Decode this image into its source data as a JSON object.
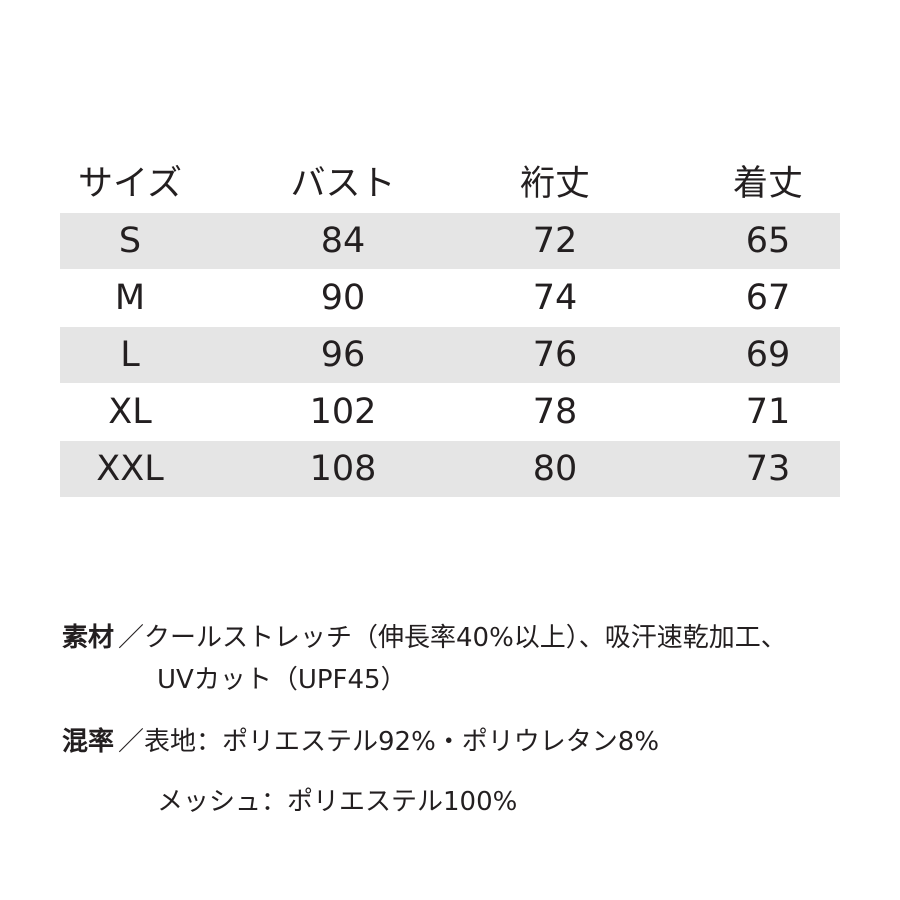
{
  "table": {
    "header": [
      "サイズ",
      "バスト",
      "裄丈",
      "着丈"
    ],
    "rows": [
      [
        "S",
        84,
        72,
        65
      ],
      [
        "M",
        90,
        74,
        67
      ],
      [
        "L",
        96,
        76,
        69
      ],
      [
        "XL",
        102,
        78,
        71
      ],
      [
        "XXL",
        108,
        80,
        73
      ]
    ]
  },
  "notes": [
    {
      "label": "素材",
      "lines": [
        "／クールストレッチ（伸長率40%以上）、吸汗速乾加工、",
        "UVカット（UPF45）"
      ]
    },
    {
      "label": "混率",
      "lines": [
        "／表地：ポリエステル92%・ポリウレタン8%",
        "メッシュ：ポリエステル100%"
      ]
    }
  ]
}
